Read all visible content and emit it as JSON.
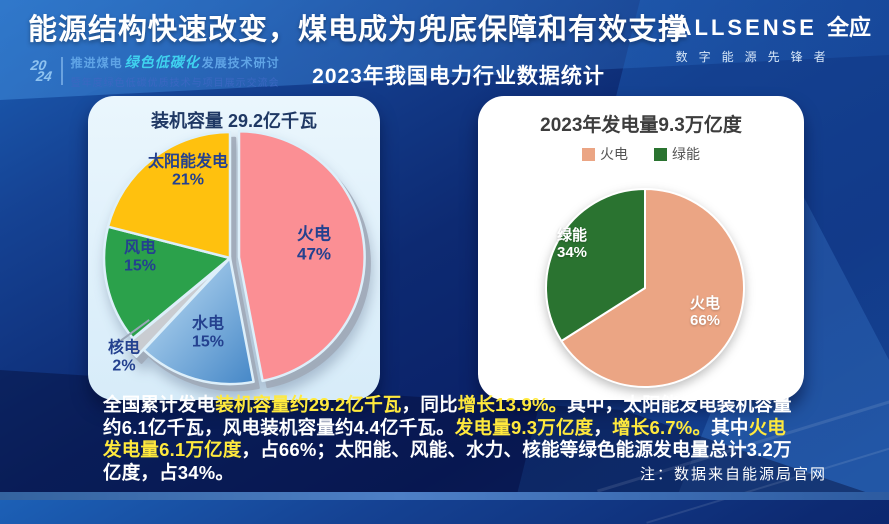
{
  "header": {
    "title": "能源结构快速改变，煤电成为兜底保障和有效支撑",
    "conference": {
      "year_top": "20",
      "year_bottom": "24",
      "line1_pre": "推进煤电",
      "line1_script": "绿色低碳化",
      "line1_post": "发展技术研讨",
      "line2": "暨年度绿色低碳优质技术与项目展示交流会"
    },
    "logo": {
      "brand": "ALLSENSE",
      "brand_cn": "全应",
      "slogan": "数字能源先锋者"
    }
  },
  "subtitle": "2023年我国电力行业数据统计",
  "chart_data": [
    {
      "type": "pie",
      "title": "装机容量 29.2亿千瓦",
      "unit": "%",
      "legend_position": "none",
      "slices": [
        {
          "name": "火电",
          "value": 47,
          "pct": "47%",
          "color": "#fb8f94",
          "explode": 9
        },
        {
          "name": "水电",
          "value": 15,
          "pct": "15%",
          "color": "#4587c7",
          "gradient": [
            "#c3e1f6",
            "#4587c7"
          ]
        },
        {
          "name": "核电",
          "value": 2,
          "pct": "2%",
          "color": "#c9ccd1",
          "explode": 10
        },
        {
          "name": "风电",
          "value": 15,
          "pct": "15%",
          "color": "#2ba14b"
        },
        {
          "name": "太阳能发电",
          "value": 21,
          "pct": "21%",
          "color": "#ffc10e"
        }
      ]
    },
    {
      "type": "pie",
      "title": "2023年发电量9.3万亿度",
      "unit": "%",
      "legend_position": "top",
      "legend": [
        "火电",
        "绿能"
      ],
      "slices": [
        {
          "name": "火电",
          "value": 66,
          "pct": "66%",
          "color": "#eba584"
        },
        {
          "name": "绿能",
          "value": 34,
          "pct": "34%",
          "color": "#2a7330"
        }
      ]
    }
  ],
  "summary": {
    "segments": [
      {
        "t": "全国累计发电",
        "h": false
      },
      {
        "t": "装机容量约29.2亿千瓦",
        "h": true
      },
      {
        "t": "，同比",
        "h": false
      },
      {
        "t": "增长13.9%。",
        "h": true
      },
      {
        "t": "其中，太阳能发电装机容量约6.1亿千瓦，风电装机容量约4.4亿千瓦。",
        "h": false
      },
      {
        "t": "发电量9.3万亿度",
        "h": true
      },
      {
        "t": "，",
        "h": false
      },
      {
        "t": "增长6.7%。",
        "h": true
      },
      {
        "t": "其中",
        "h": false
      },
      {
        "t": "火电发电量6.1万亿度",
        "h": true
      },
      {
        "t": "，占66%；太阳能、风能、水力、核能等绿色能源发电量总计3.2万亿度，占34%。",
        "h": false
      }
    ]
  },
  "note": "注：数据来自能源局官网",
  "colors": {
    "background": "#0d2a72",
    "highlight": "#ffe93d",
    "card_left_bg": "#ddeefa",
    "card_right_bg": "#ffffff",
    "label_navy": "#24418f"
  }
}
